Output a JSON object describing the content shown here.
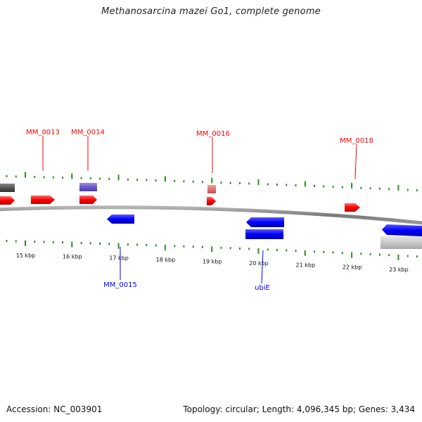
{
  "title": "Methanosarcina mazei Go1, complete genome",
  "footer": {
    "accession": "Accession: NC_003901",
    "summary": "Topology: circular; Length: 4,096,345 bp; Genes: 3,434"
  },
  "scale": {
    "labels": [
      "15 kbp",
      "16 kbp",
      "17 kbp",
      "18 kbp",
      "19 kbp",
      "20 kbp",
      "21 kbp",
      "22 kbp",
      "23 kbp"
    ]
  },
  "genes": {
    "forward": [
      {
        "label": "MM_0013",
        "color": "#ff0000"
      },
      {
        "label": "MM_0014",
        "color": "#ff0000"
      },
      {
        "label": "MM_0016",
        "color": "#ff0000"
      },
      {
        "label": "MM_0018",
        "color": "#ff0000"
      }
    ],
    "reverse": [
      {
        "label": "MM_0015",
        "color": "#0000ff"
      },
      {
        "label": "ubiE",
        "color": "#0000ff"
      }
    ]
  },
  "colors": {
    "backbone": "#8c8c8c",
    "ticks": "#2e8b22",
    "forward_gene": "#ff0000",
    "reverse_gene": "#0000ff",
    "feature_grey": "#555555",
    "feature_purple": "#6a5acd",
    "feature_pink": "#e37070",
    "feature_light_grey": "#c8c8c8"
  }
}
